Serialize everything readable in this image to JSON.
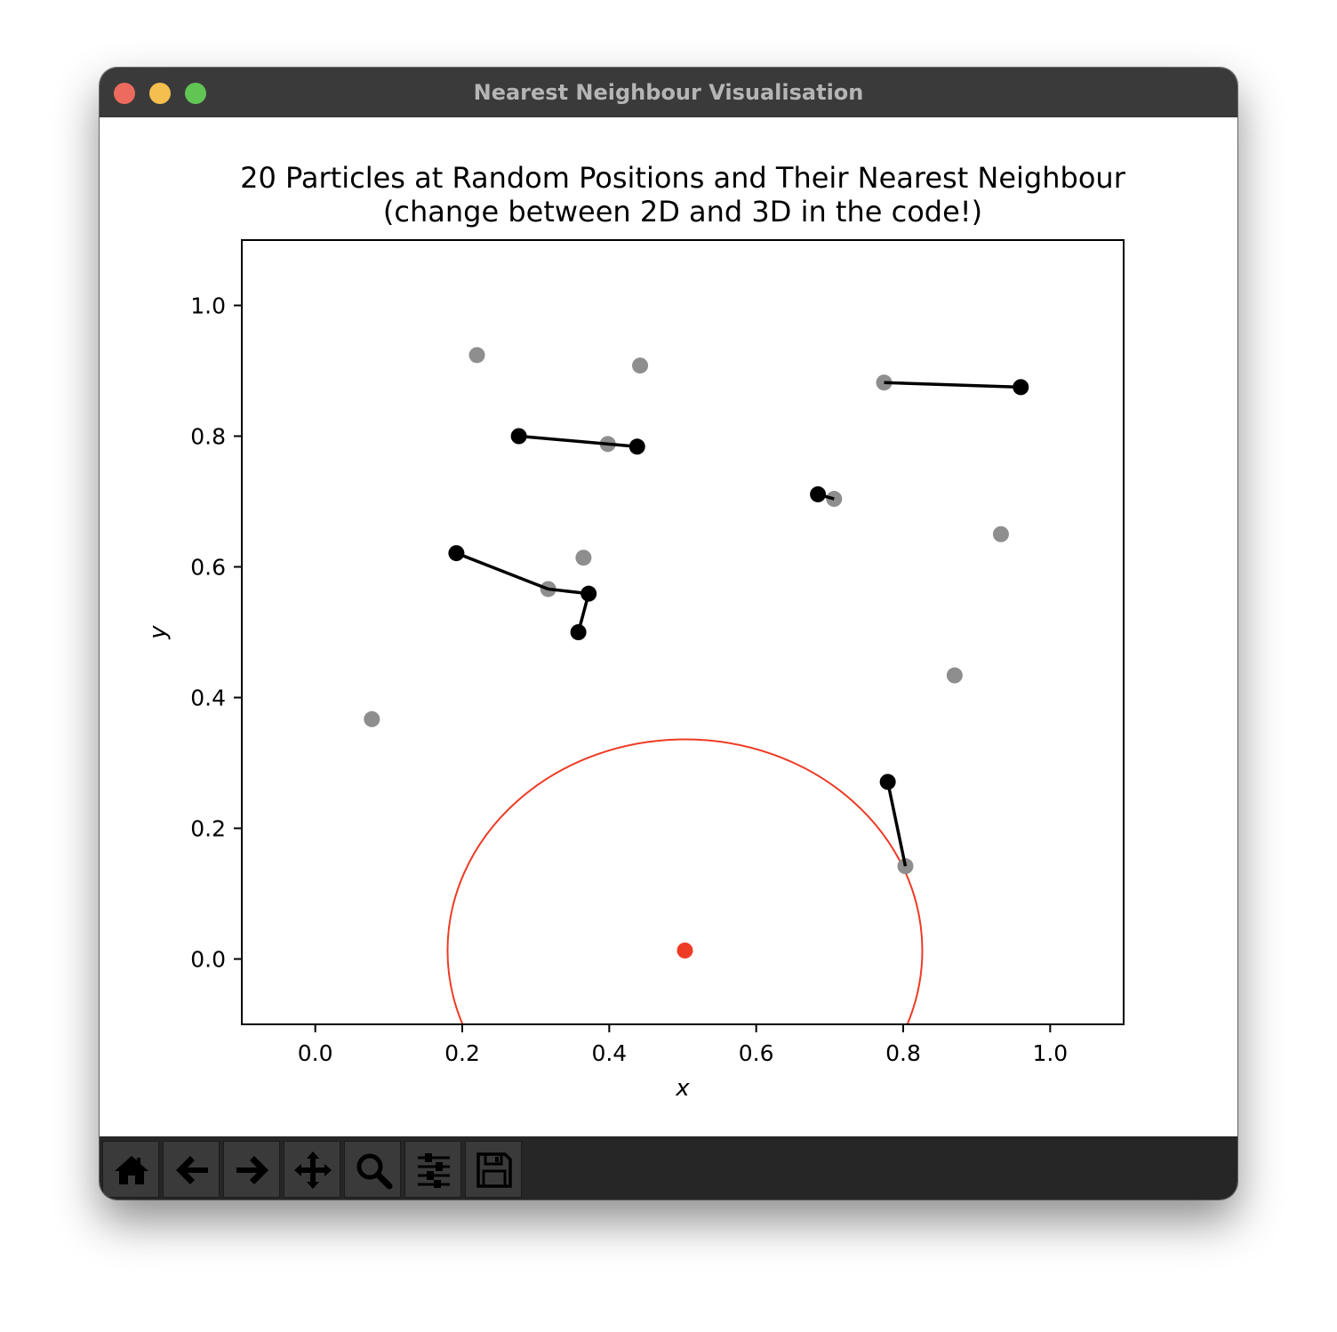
{
  "window": {
    "title": "Nearest Neighbour Visualisation"
  },
  "toolbar": {
    "buttons": [
      {
        "icon": "home-icon"
      },
      {
        "icon": "back-arrow-icon"
      },
      {
        "icon": "forward-arrow-icon"
      },
      {
        "icon": "pan-icon"
      },
      {
        "icon": "zoom-icon"
      },
      {
        "icon": "sliders-icon"
      },
      {
        "icon": "save-icon"
      }
    ]
  },
  "chart_data": {
    "type": "scatter",
    "title": "20 Particles at Random Positions and Their Nearest Neighbour\n(change between 2D and 3D in the code!)",
    "xlabel": "x",
    "ylabel": "y",
    "xlim": [
      -0.1,
      1.1
    ],
    "ylim": [
      -0.1,
      1.1
    ],
    "xticks": [
      "0.0",
      "0.2",
      "0.4",
      "0.6",
      "0.8",
      "1.0"
    ],
    "yticks": [
      "0.0",
      "0.2",
      "0.4",
      "0.6",
      "0.8",
      "1.0"
    ],
    "grid": false,
    "colors": {
      "grey": "#8e8e8e",
      "black": "#000000",
      "red": "#ee3b24"
    },
    "grey_points": [
      [
        0.22,
        0.924
      ],
      [
        0.442,
        0.908
      ],
      [
        0.774,
        0.882
      ],
      [
        0.398,
        0.788
      ],
      [
        0.706,
        0.704
      ],
      [
        0.933,
        0.65
      ],
      [
        0.365,
        0.614
      ],
      [
        0.317,
        0.566
      ],
      [
        0.87,
        0.434
      ],
      [
        0.077,
        0.367
      ],
      [
        0.803,
        0.142
      ]
    ],
    "black_points": [
      [
        0.277,
        0.8
      ],
      [
        0.438,
        0.784
      ],
      [
        0.96,
        0.875
      ],
      [
        0.684,
        0.711
      ],
      [
        0.192,
        0.621
      ],
      [
        0.372,
        0.559
      ],
      [
        0.358,
        0.5
      ],
      [
        0.779,
        0.271
      ]
    ],
    "segments": [
      [
        [
          0.277,
          0.8
        ],
        [
          0.438,
          0.784
        ]
      ],
      [
        [
          0.774,
          0.882
        ],
        [
          0.96,
          0.875
        ]
      ],
      [
        [
          0.684,
          0.711
        ],
        [
          0.706,
          0.704
        ]
      ],
      [
        [
          0.192,
          0.621
        ],
        [
          0.317,
          0.566
        ]
      ],
      [
        [
          0.317,
          0.566
        ],
        [
          0.372,
          0.559
        ]
      ],
      [
        [
          0.372,
          0.559
        ],
        [
          0.358,
          0.5
        ]
      ],
      [
        [
          0.779,
          0.271
        ],
        [
          0.803,
          0.142
        ]
      ]
    ],
    "red_point": [
      0.503,
      0.013
    ],
    "circle": {
      "center": [
        0.503,
        0.013
      ],
      "radius": 0.323
    }
  }
}
